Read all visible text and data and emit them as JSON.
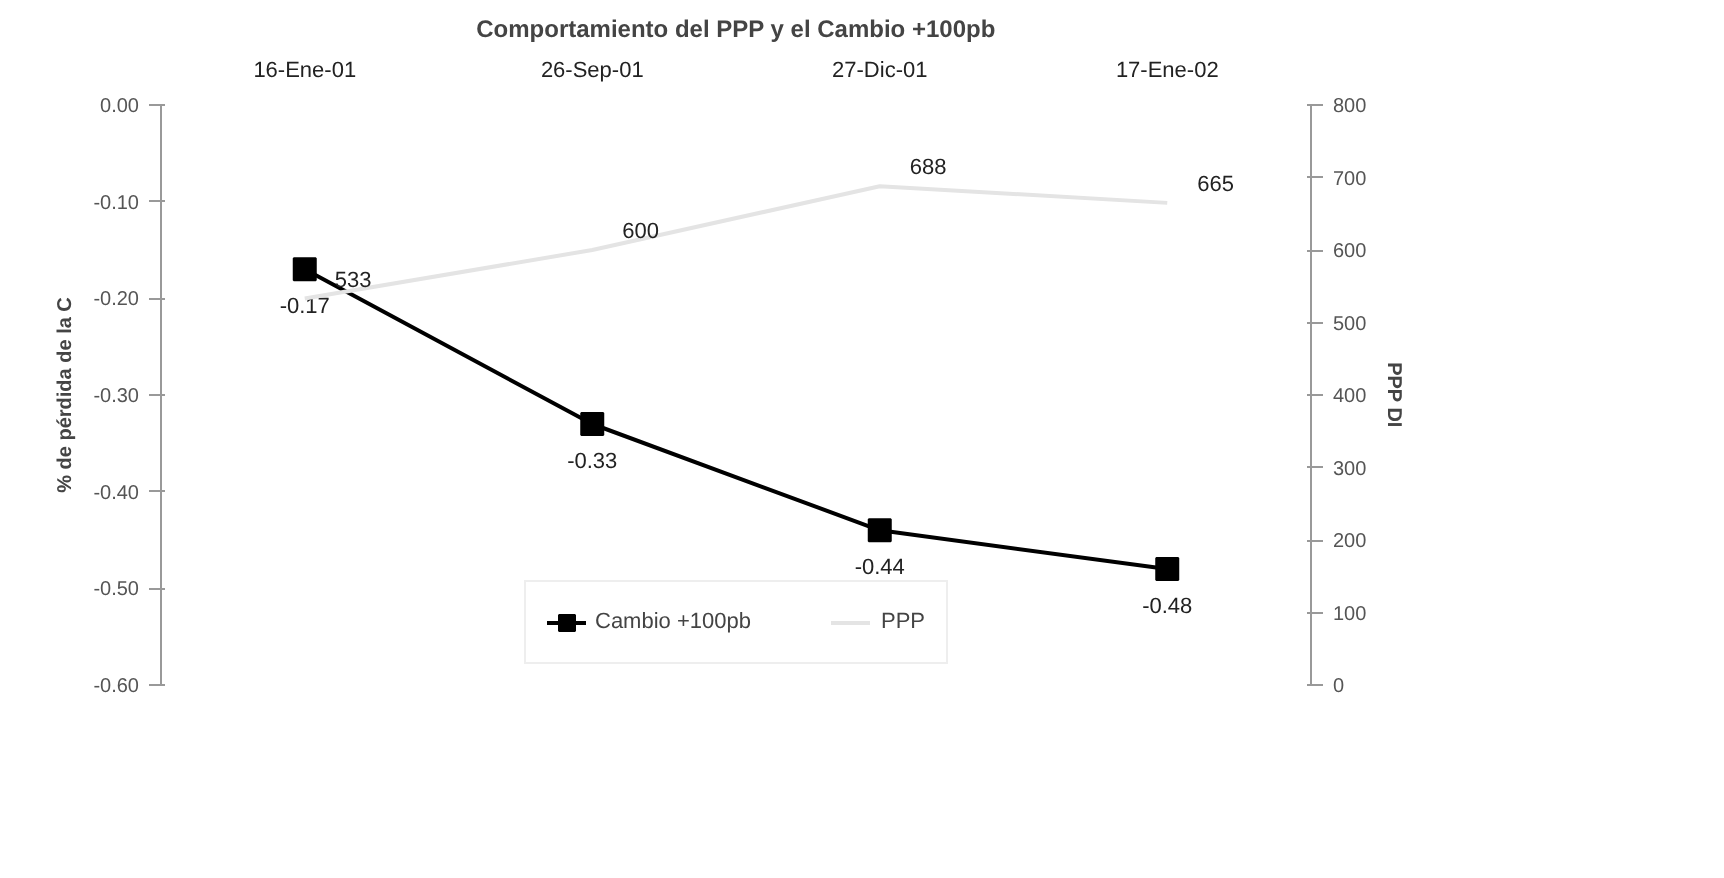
{
  "chart_data": {
    "type": "line",
    "title": "Comportamiento del PPP y el Cambio +100pb",
    "categories": [
      "16-Ene-01",
      "26-Sep-01",
      "27-Dic-01",
      "17-Ene-02"
    ],
    "ylabel": "% de pérdida de la C",
    "y2label": "PPP DI",
    "ylim": [
      -0.6,
      0.0
    ],
    "yticks": [
      {
        "value": 0.0,
        "label": "0.00"
      },
      {
        "value": -0.1,
        "label": "-0.10"
      },
      {
        "value": -0.2,
        "label": "-0.20"
      },
      {
        "value": -0.3,
        "label": "-0.30"
      },
      {
        "value": -0.4,
        "label": "-0.40"
      },
      {
        "value": -0.5,
        "label": "-0.50"
      },
      {
        "value": -0.6,
        "label": "-0.60"
      }
    ],
    "y2lim": [
      0,
      800
    ],
    "y2ticks": [
      0,
      100,
      200,
      300,
      400,
      500,
      600,
      700,
      800
    ],
    "series": [
      {
        "name": "Cambio +100pb",
        "color": "#000000",
        "values": [
          -0.17,
          -0.33,
          -0.44,
          -0.48
        ],
        "marker": "square"
      },
      {
        "name": "PPP",
        "color": "#e4e4e4",
        "values": [
          533,
          600,
          688,
          665
        ],
        "axis": "y2",
        "marker": "none"
      }
    ],
    "data_labels": true,
    "legend": "bottom",
    "grid": false
  }
}
